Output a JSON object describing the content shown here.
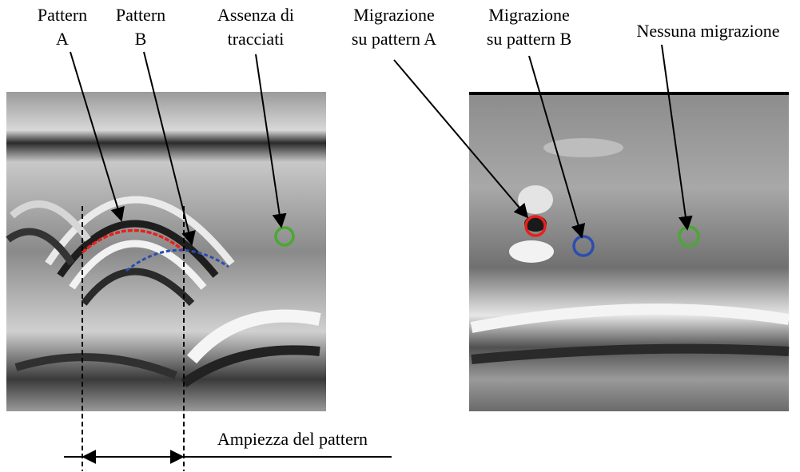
{
  "left_panel": {
    "labels": [
      {
        "lines": [
          "Pattern",
          "A"
        ]
      },
      {
        "lines": [
          "Pattern",
          "B"
        ]
      },
      {
        "lines": [
          "Assenza di",
          "tracciati"
        ]
      }
    ],
    "width_label": "Ampiezza del pattern"
  },
  "right_panel": {
    "labels": [
      {
        "lines": [
          "Migrazione",
          "su pattern A"
        ]
      },
      {
        "lines": [
          "Migrazione",
          "su pattern B"
        ]
      },
      {
        "lines": [
          "Nessuna migrazione"
        ]
      }
    ]
  }
}
